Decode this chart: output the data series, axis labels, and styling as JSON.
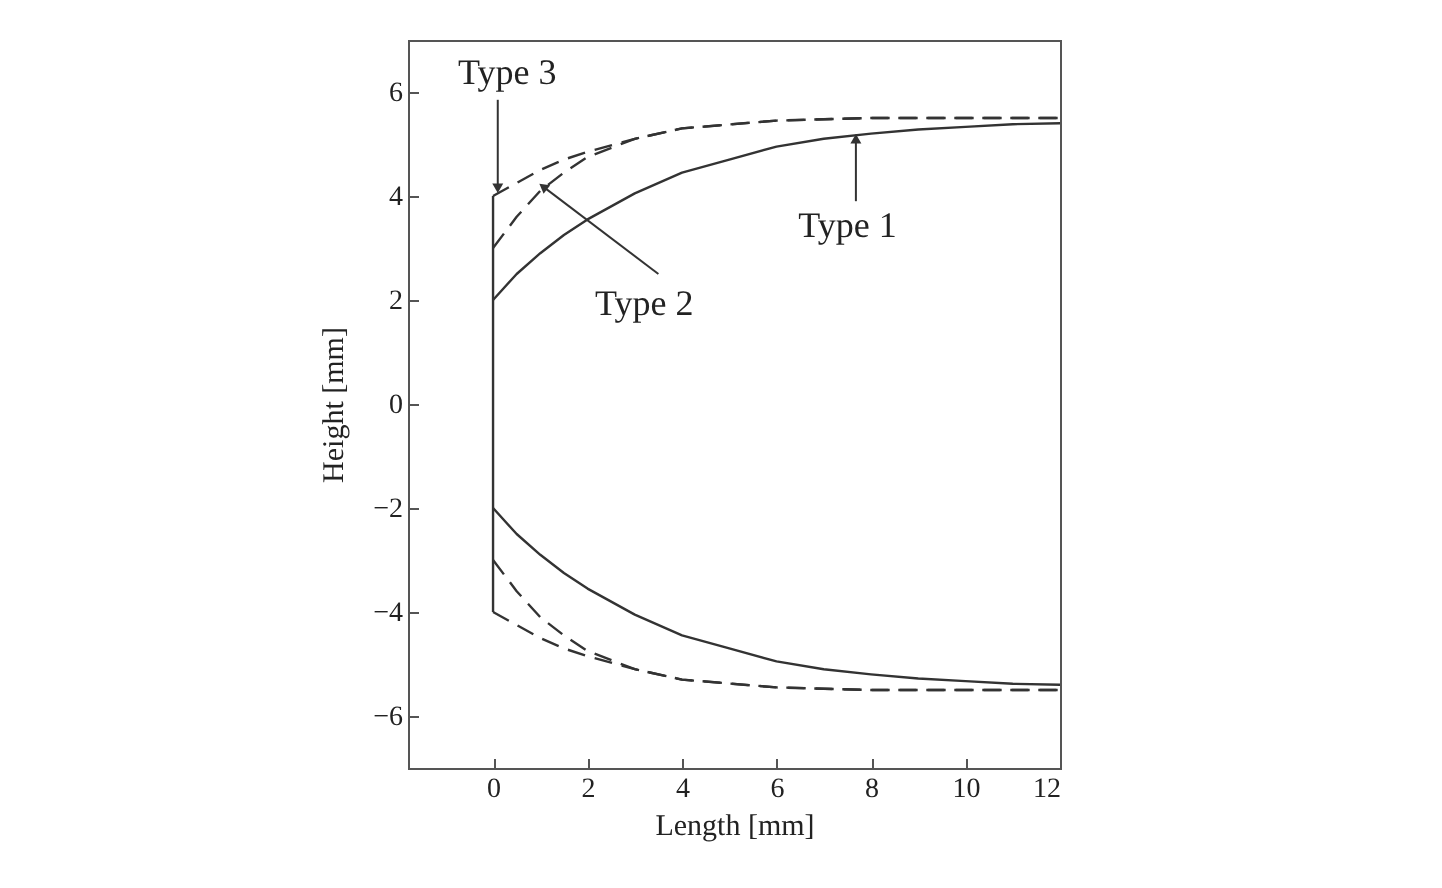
{
  "chart_data": {
    "type": "line",
    "xlabel": "Length [mm]",
    "ylabel": "Height [mm]",
    "xlim": [
      -1.8,
      12
    ],
    "ylim": [
      -7,
      7
    ],
    "xticks": [
      0,
      2,
      4,
      6,
      8,
      10,
      12
    ],
    "yticks": [
      -6,
      -4,
      -2,
      0,
      2,
      4,
      6
    ],
    "series": [
      {
        "color": "#333333",
        "line_style": "solid",
        "x": [
          0,
          0
        ],
        "values": [
          -4,
          4
        ]
      },
      {
        "color": "#333333",
        "line_style": "solid",
        "x": [
          0,
          0.5,
          1,
          1.5,
          2,
          3,
          4,
          5,
          6,
          7,
          8,
          9,
          10,
          11,
          12
        ],
        "values": [
          2,
          2.5,
          2.9,
          3.25,
          3.55,
          4.05,
          4.45,
          4.7,
          4.95,
          5.1,
          5.2,
          5.28,
          5.33,
          5.38,
          5.4
        ]
      },
      {
        "color": "#333333",
        "line_style": "solid",
        "x": [
          0,
          0.5,
          1,
          1.5,
          2,
          3,
          4,
          5,
          6,
          7,
          8,
          9,
          10,
          11,
          12
        ],
        "values": [
          -2,
          -2.5,
          -2.9,
          -3.25,
          -3.55,
          -4.05,
          -4.45,
          -4.7,
          -4.95,
          -5.1,
          -5.2,
          -5.28,
          -5.33,
          -5.38,
          -5.4
        ]
      },
      {
        "color": "#333333",
        "line_style": "dashed",
        "x": [
          0,
          0.5,
          1,
          1.5,
          2,
          3,
          4,
          6,
          8,
          10,
          12
        ],
        "values": [
          3,
          3.6,
          4.1,
          4.45,
          4.75,
          5.1,
          5.3,
          5.45,
          5.5,
          5.5,
          5.5
        ]
      },
      {
        "color": "#333333",
        "line_style": "dashed",
        "x": [
          0,
          0.5,
          1,
          1.5,
          2,
          3,
          4,
          6,
          8,
          10,
          12
        ],
        "values": [
          -3,
          -3.6,
          -4.1,
          -4.45,
          -4.75,
          -5.1,
          -5.3,
          -5.45,
          -5.5,
          -5.5,
          -5.5
        ]
      },
      {
        "color": "#333333",
        "line_style": "dashed",
        "x": [
          0,
          0.5,
          1,
          1.5,
          2,
          3,
          4,
          6,
          8,
          12
        ],
        "values": [
          4,
          4.25,
          4.5,
          4.7,
          4.85,
          5.1,
          5.3,
          5.45,
          5.5,
          5.5
        ]
      },
      {
        "color": "#333333",
        "line_style": "dashed",
        "x": [
          0,
          0.5,
          1,
          1.5,
          2,
          3,
          4,
          6,
          8,
          12
        ],
        "values": [
          -4,
          -4.25,
          -4.5,
          -4.7,
          -4.85,
          -5.1,
          -5.3,
          -5.45,
          -5.5,
          -5.5
        ]
      }
    ],
    "annotations": [
      {
        "text": "Type 3",
        "x": 0.1,
        "y": 4.15
      },
      {
        "text": "Type 2",
        "x": 1.06,
        "y": 4.18
      },
      {
        "text": "Type 1",
        "x": 7.68,
        "y": 5.1
      }
    ]
  }
}
